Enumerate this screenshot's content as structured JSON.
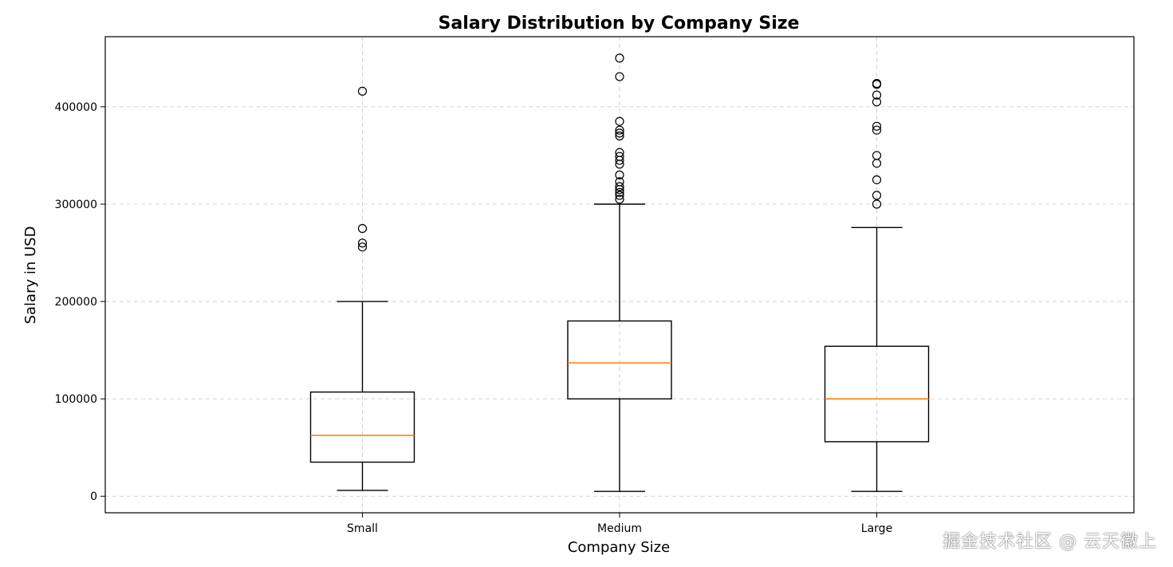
{
  "chart_data": {
    "type": "box",
    "title": "Salary Distribution by Company Size",
    "xlabel": "Company Size",
    "ylabel": "Salary in USD",
    "ylim": [
      -17000,
      472000
    ],
    "yticks": [
      0,
      100000,
      200000,
      300000,
      400000
    ],
    "grid": true,
    "categories": [
      "Small",
      "Medium",
      "Large"
    ],
    "boxes": [
      {
        "name": "Small",
        "whisker_low": 6000,
        "q1": 35000,
        "median": 62500,
        "q3": 107000,
        "whisker_high": 200000,
        "outliers": [
          416000,
          275000,
          260000,
          256000
        ]
      },
      {
        "name": "Medium",
        "whisker_low": 5000,
        "q1": 100000,
        "median": 137000,
        "q3": 180000,
        "whisker_high": 300000,
        "outliers": [
          450000,
          431000,
          385000,
          376000,
          373000,
          370000,
          353000,
          349000,
          345000,
          341000,
          330000,
          323000,
          318000,
          315000,
          312000,
          309000,
          305000
        ]
      },
      {
        "name": "Large",
        "whisker_low": 5000,
        "q1": 56000,
        "median": 100000,
        "q3": 154000,
        "whisker_high": 276000,
        "outliers": [
          424000,
          423000,
          412000,
          405000,
          380000,
          376000,
          350000,
          342000,
          325000,
          309000,
          300000
        ]
      }
    ],
    "colors": {
      "box": "#000000",
      "median": "#ff7f0e",
      "grid": "#b0b0b0"
    }
  },
  "watermark": "掘金技术社区 @ 云天徽上"
}
